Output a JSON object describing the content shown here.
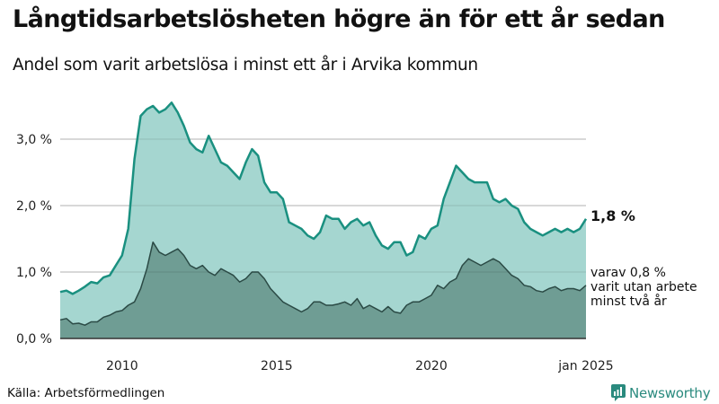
{
  "header": {
    "title": "Långtidsarbetslösheten högre än för ett år sedan",
    "subtitle": "Andel som varit arbetslösa i minst ett år i Arvika kommun"
  },
  "labels": {
    "end_main": "1,8 %",
    "end_sub_line1": "varav 0,8 %",
    "end_sub_line2": "varit utan arbete",
    "end_sub_line3": "minst två år"
  },
  "footer": {
    "source": "Källa: Arbetsförmedlingen",
    "brand": "Newsworthy"
  },
  "colors": {
    "upper_fill": "#a5d6d0",
    "upper_line": "#1a9080",
    "lower_fill": "#6f9d94",
    "lower_line": "#2b4a45",
    "grid": "#dddddd",
    "brand": "#2a8a7e"
  },
  "chart_data": {
    "type": "area",
    "title": "Långtidsarbetslösheten högre än för ett år sedan",
    "subtitle": "Andel som varit arbetslösa i minst ett år i Arvika kommun",
    "xlabel": "",
    "ylabel": "",
    "x_ticks": [
      "2010",
      "2015",
      "2020",
      "jan 2025"
    ],
    "y_ticks": [
      "0,0 %",
      "1,0 %",
      "2,0 %",
      "3,0 %"
    ],
    "ylim": [
      0,
      3.6
    ],
    "xlim": [
      2008.0,
      2025.0
    ],
    "grid": "horizontal",
    "legend": "direct labels at right end",
    "series": [
      {
        "name": "Arbetslösa minst ett år (%)",
        "end_label": "1,8 %",
        "x": [
          2008.0,
          2008.2,
          2008.4,
          2008.6,
          2008.8,
          2009.0,
          2009.2,
          2009.4,
          2009.6,
          2009.8,
          2010.0,
          2010.2,
          2010.4,
          2010.6,
          2010.8,
          2011.0,
          2011.2,
          2011.4,
          2011.6,
          2011.8,
          2012.0,
          2012.2,
          2012.4,
          2012.6,
          2012.8,
          2013.0,
          2013.2,
          2013.4,
          2013.6,
          2013.8,
          2014.0,
          2014.2,
          2014.4,
          2014.6,
          2014.8,
          2015.0,
          2015.2,
          2015.4,
          2015.6,
          2015.8,
          2016.0,
          2016.2,
          2016.4,
          2016.6,
          2016.8,
          2017.0,
          2017.2,
          2017.4,
          2017.6,
          2017.8,
          2018.0,
          2018.2,
          2018.4,
          2018.6,
          2018.8,
          2019.0,
          2019.2,
          2019.4,
          2019.6,
          2019.8,
          2020.0,
          2020.2,
          2020.4,
          2020.6,
          2020.8,
          2021.0,
          2021.2,
          2021.4,
          2021.6,
          2021.8,
          2022.0,
          2022.2,
          2022.4,
          2022.6,
          2022.8,
          2023.0,
          2023.2,
          2023.4,
          2023.6,
          2023.8,
          2024.0,
          2024.2,
          2024.4,
          2024.6,
          2024.8,
          2025.0
        ],
        "values": [
          0.7,
          0.72,
          0.67,
          0.72,
          0.78,
          0.85,
          0.83,
          0.92,
          0.95,
          1.1,
          1.25,
          1.65,
          2.7,
          3.35,
          3.45,
          3.5,
          3.4,
          3.45,
          3.55,
          3.4,
          3.2,
          2.95,
          2.85,
          2.8,
          3.05,
          2.85,
          2.65,
          2.6,
          2.5,
          2.4,
          2.65,
          2.85,
          2.75,
          2.35,
          2.2,
          2.2,
          2.1,
          1.75,
          1.7,
          1.65,
          1.55,
          1.5,
          1.6,
          1.85,
          1.8,
          1.8,
          1.65,
          1.75,
          1.8,
          1.7,
          1.75,
          1.55,
          1.4,
          1.35,
          1.45,
          1.45,
          1.25,
          1.3,
          1.55,
          1.5,
          1.65,
          1.7,
          2.1,
          2.35,
          2.6,
          2.5,
          2.4,
          2.35,
          2.35,
          2.35,
          2.1,
          2.05,
          2.1,
          2.0,
          1.95,
          1.75,
          1.65,
          1.6,
          1.55,
          1.6,
          1.65,
          1.6,
          1.65,
          1.6,
          1.65,
          1.8
        ]
      },
      {
        "name": "varav utan arbete minst två år (%)",
        "end_label": "varav 0,8 % varit utan arbete minst två år",
        "x": [
          2008.0,
          2008.2,
          2008.4,
          2008.6,
          2008.8,
          2009.0,
          2009.2,
          2009.4,
          2009.6,
          2009.8,
          2010.0,
          2010.2,
          2010.4,
          2010.6,
          2010.8,
          2011.0,
          2011.2,
          2011.4,
          2011.6,
          2011.8,
          2012.0,
          2012.2,
          2012.4,
          2012.6,
          2012.8,
          2013.0,
          2013.2,
          2013.4,
          2013.6,
          2013.8,
          2014.0,
          2014.2,
          2014.4,
          2014.6,
          2014.8,
          2015.0,
          2015.2,
          2015.4,
          2015.6,
          2015.8,
          2016.0,
          2016.2,
          2016.4,
          2016.6,
          2016.8,
          2017.0,
          2017.2,
          2017.4,
          2017.6,
          2017.8,
          2018.0,
          2018.2,
          2018.4,
          2018.6,
          2018.8,
          2019.0,
          2019.2,
          2019.4,
          2019.6,
          2019.8,
          2020.0,
          2020.2,
          2020.4,
          2020.6,
          2020.8,
          2021.0,
          2021.2,
          2021.4,
          2021.6,
          2021.8,
          2022.0,
          2022.2,
          2022.4,
          2022.6,
          2022.8,
          2023.0,
          2023.2,
          2023.4,
          2023.6,
          2023.8,
          2024.0,
          2024.2,
          2024.4,
          2024.6,
          2024.8,
          2025.0
        ],
        "values": [
          0.28,
          0.3,
          0.22,
          0.23,
          0.2,
          0.25,
          0.25,
          0.32,
          0.35,
          0.4,
          0.42,
          0.5,
          0.55,
          0.75,
          1.05,
          1.45,
          1.3,
          1.25,
          1.3,
          1.35,
          1.25,
          1.1,
          1.05,
          1.1,
          1.0,
          0.95,
          1.05,
          1.0,
          0.95,
          0.85,
          0.9,
          1.0,
          1.0,
          0.9,
          0.75,
          0.65,
          0.55,
          0.5,
          0.45,
          0.4,
          0.45,
          0.55,
          0.55,
          0.5,
          0.5,
          0.52,
          0.55,
          0.5,
          0.6,
          0.45,
          0.5,
          0.45,
          0.4,
          0.48,
          0.4,
          0.38,
          0.5,
          0.55,
          0.55,
          0.6,
          0.65,
          0.8,
          0.75,
          0.85,
          0.9,
          1.1,
          1.2,
          1.15,
          1.1,
          1.15,
          1.2,
          1.15,
          1.05,
          0.95,
          0.9,
          0.8,
          0.78,
          0.72,
          0.7,
          0.75,
          0.78,
          0.72,
          0.75,
          0.75,
          0.72,
          0.8
        ]
      }
    ]
  }
}
